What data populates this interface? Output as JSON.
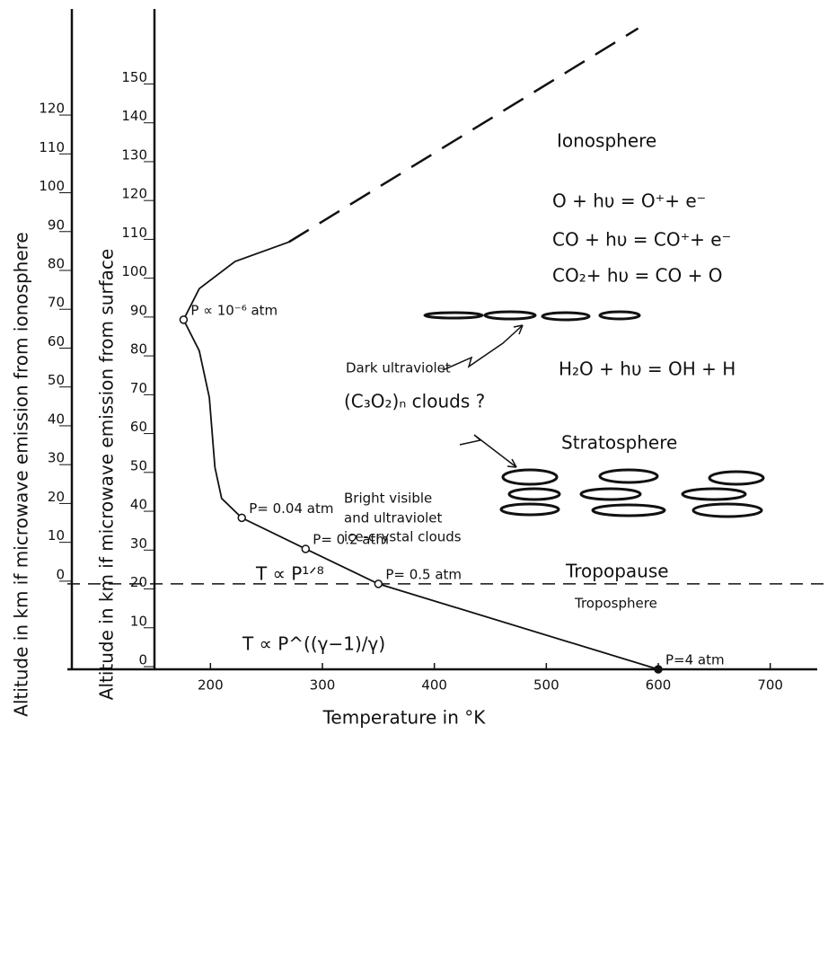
{
  "chart_data": {
    "type": "line",
    "x_label": "Temperature in °K",
    "y_label": "Altitude in km if microwave emission from surface",
    "y2_label": "Altitude in km if microwave emission from ionosphere",
    "xlim": [
      150,
      750
    ],
    "xticks": [
      200,
      300,
      400,
      500,
      600,
      700
    ],
    "ylim": [
      0,
      170
    ],
    "yticks": [
      0,
      10,
      20,
      30,
      40,
      50,
      60,
      70,
      80,
      90,
      100,
      110,
      120,
      130,
      140,
      150
    ],
    "y2lim": [
      -22,
      148
    ],
    "y2ticks": [
      0,
      10,
      20,
      30,
      40,
      50,
      60,
      70,
      80,
      90,
      100,
      110,
      120
    ],
    "color": "#111111",
    "series": [
      {
        "style": "solid",
        "x": [
          600,
          350,
          285,
          228,
          210,
          204,
          199,
          190,
          176,
          190,
          222,
          270
        ],
        "values": [
          0,
          22,
          31,
          39,
          44,
          52,
          70,
          82,
          90,
          98,
          105,
          110
        ]
      },
      {
        "style": "dashed",
        "x": [
          270,
          582
        ],
        "values": [
          110,
          165
        ]
      }
    ],
    "points": [
      {
        "x": 600,
        "y": 0,
        "label": "P=4 atm"
      },
      {
        "x": 350,
        "y": 22,
        "label": "P= 0.5 atm"
      },
      {
        "x": 285,
        "y": 31,
        "label": "P= 0.2 atm"
      },
      {
        "x": 228,
        "y": 39,
        "label": "P= 0.04 atm"
      },
      {
        "x": 176,
        "y": 90,
        "label": "P ∝ 10⁻⁶ atm"
      }
    ],
    "annotations": [
      "Ionosphere",
      "O + hυ = O⁺+ e⁻",
      "CO + hυ = CO⁺+ e⁻",
      "CO₂+ hυ = CO + O",
      "H₂O + hυ = OH + H",
      "Dark ultraviolet",
      "(C₃O₂)ₙ  clouds ?",
      "Stratosphere",
      "Bright visible",
      "and ultraviolet",
      "ice-crystal clouds",
      "Tropopause",
      "Troposphere",
      "T ∝ P¹ᐟ⁸",
      "T ∝ P^((γ−1)/γ)"
    ]
  }
}
